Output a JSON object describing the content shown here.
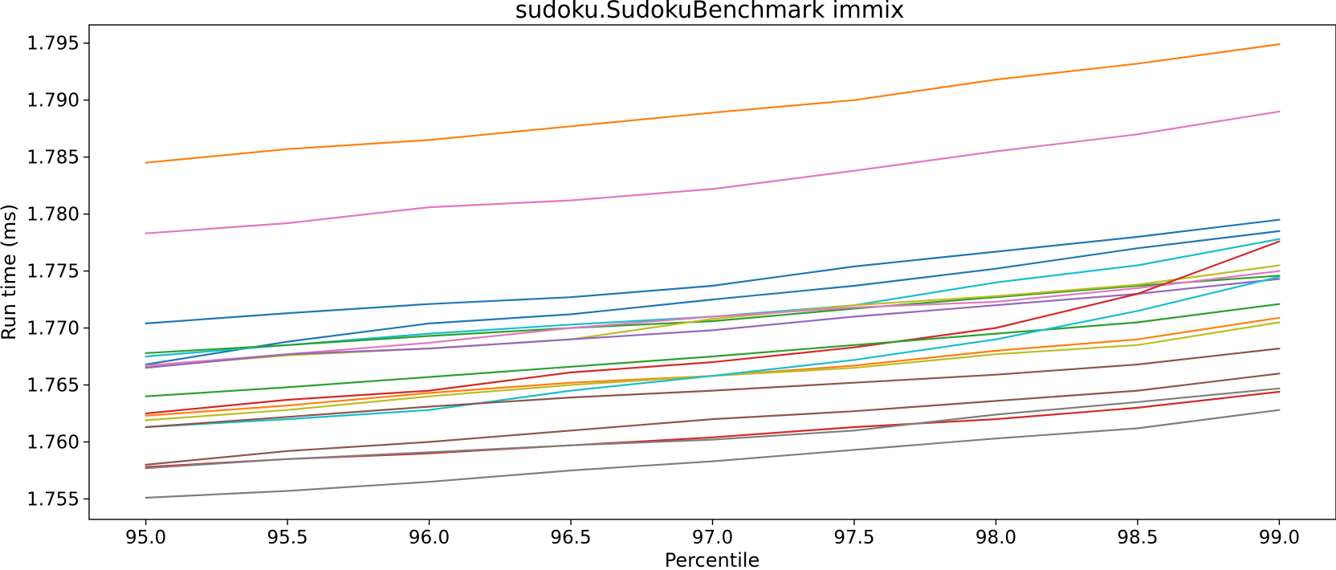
{
  "chart_data": {
    "type": "line",
    "title": "sudoku.SudokuBenchmark immix",
    "xlabel": "Percentile",
    "ylabel": "Run time (ms)",
    "xlim": [
      94.8,
      99.2
    ],
    "ylim": [
      1.7532,
      1.7966
    ],
    "x_ticks": [
      "95.0",
      "95.5",
      "96.0",
      "96.5",
      "97.0",
      "97.5",
      "98.0",
      "98.5",
      "99.0"
    ],
    "y_ticks": [
      "1.755",
      "1.760",
      "1.765",
      "1.770",
      "1.775",
      "1.780",
      "1.785",
      "1.790",
      "1.795"
    ],
    "grid": false,
    "legend": false,
    "x": [
      95.0,
      95.5,
      96.0,
      96.5,
      97.0,
      97.5,
      98.0,
      98.5,
      99.0
    ],
    "series": [
      {
        "color": "#ff7f0e",
        "values": [
          1.7845,
          1.7857,
          1.7865,
          1.7877,
          1.7889,
          1.79,
          1.7918,
          1.7932,
          1.7949
        ]
      },
      {
        "color": "#e377c2",
        "values": [
          1.7783,
          1.7792,
          1.7806,
          1.7812,
          1.7822,
          1.7838,
          1.7855,
          1.787,
          1.789
        ]
      },
      {
        "color": "#1f77b4",
        "values": [
          1.7704,
          1.7713,
          1.7721,
          1.7727,
          1.7737,
          1.7754,
          1.7767,
          1.778,
          1.7795
        ]
      },
      {
        "color": "#1f77b4",
        "values": [
          1.7668,
          1.7688,
          1.7704,
          1.7712,
          1.7725,
          1.7737,
          1.7752,
          1.777,
          1.7785
        ]
      },
      {
        "color": "#17becf",
        "values": [
          1.7675,
          1.7685,
          1.7695,
          1.7703,
          1.771,
          1.772,
          1.774,
          1.7755,
          1.7778
        ]
      },
      {
        "color": "#2ca02c",
        "values": [
          1.7678,
          1.7685,
          1.7693,
          1.77,
          1.7706,
          1.7717,
          1.7727,
          1.7737,
          1.7746
        ]
      },
      {
        "color": "#bcbd22",
        "values": [
          1.7666,
          1.7676,
          1.7682,
          1.769,
          1.7708,
          1.772,
          1.7728,
          1.7738,
          1.7755
        ]
      },
      {
        "color": "#e377c2",
        "values": [
          1.7667,
          1.7677,
          1.7687,
          1.77,
          1.771,
          1.7718,
          1.7723,
          1.7735,
          1.775
        ]
      },
      {
        "color": "#9467bd",
        "values": [
          1.7665,
          1.7677,
          1.7682,
          1.769,
          1.7698,
          1.771,
          1.772,
          1.773,
          1.7743
        ]
      },
      {
        "color": "#d62728",
        "values": [
          1.7625,
          1.7637,
          1.7645,
          1.7661,
          1.767,
          1.7683,
          1.77,
          1.773,
          1.7776
        ]
      },
      {
        "color": "#2ca02c",
        "values": [
          1.764,
          1.7648,
          1.7657,
          1.7666,
          1.7675,
          1.7685,
          1.7695,
          1.7705,
          1.7721
        ]
      },
      {
        "color": "#ff7f0e",
        "values": [
          1.7623,
          1.7632,
          1.7643,
          1.7652,
          1.7658,
          1.7667,
          1.768,
          1.769,
          1.7709
        ]
      },
      {
        "color": "#bcbd22",
        "values": [
          1.7619,
          1.7628,
          1.764,
          1.765,
          1.7658,
          1.7665,
          1.7677,
          1.7685,
          1.7705
        ]
      },
      {
        "color": "#17becf",
        "values": [
          1.7613,
          1.762,
          1.7628,
          1.7645,
          1.7658,
          1.7672,
          1.769,
          1.7715,
          1.7745
        ]
      },
      {
        "color": "#8c564b",
        "values": [
          1.7613,
          1.7622,
          1.7631,
          1.7639,
          1.7645,
          1.7652,
          1.7659,
          1.7668,
          1.7682
        ]
      },
      {
        "color": "#8c564b",
        "values": [
          1.758,
          1.7592,
          1.76,
          1.761,
          1.762,
          1.7627,
          1.7636,
          1.7645,
          1.766
        ]
      },
      {
        "color": "#d62728",
        "values": [
          1.7578,
          1.7585,
          1.759,
          1.7597,
          1.7604,
          1.7613,
          1.762,
          1.763,
          1.7644
        ]
      },
      {
        "color": "#7f7f7f",
        "values": [
          1.7577,
          1.7585,
          1.7591,
          1.7597,
          1.7602,
          1.761,
          1.7624,
          1.7635,
          1.7647
        ]
      },
      {
        "color": "#7f7f7f",
        "values": [
          1.7551,
          1.7557,
          1.7565,
          1.7575,
          1.7583,
          1.7593,
          1.7603,
          1.7612,
          1.7628
        ]
      }
    ]
  }
}
